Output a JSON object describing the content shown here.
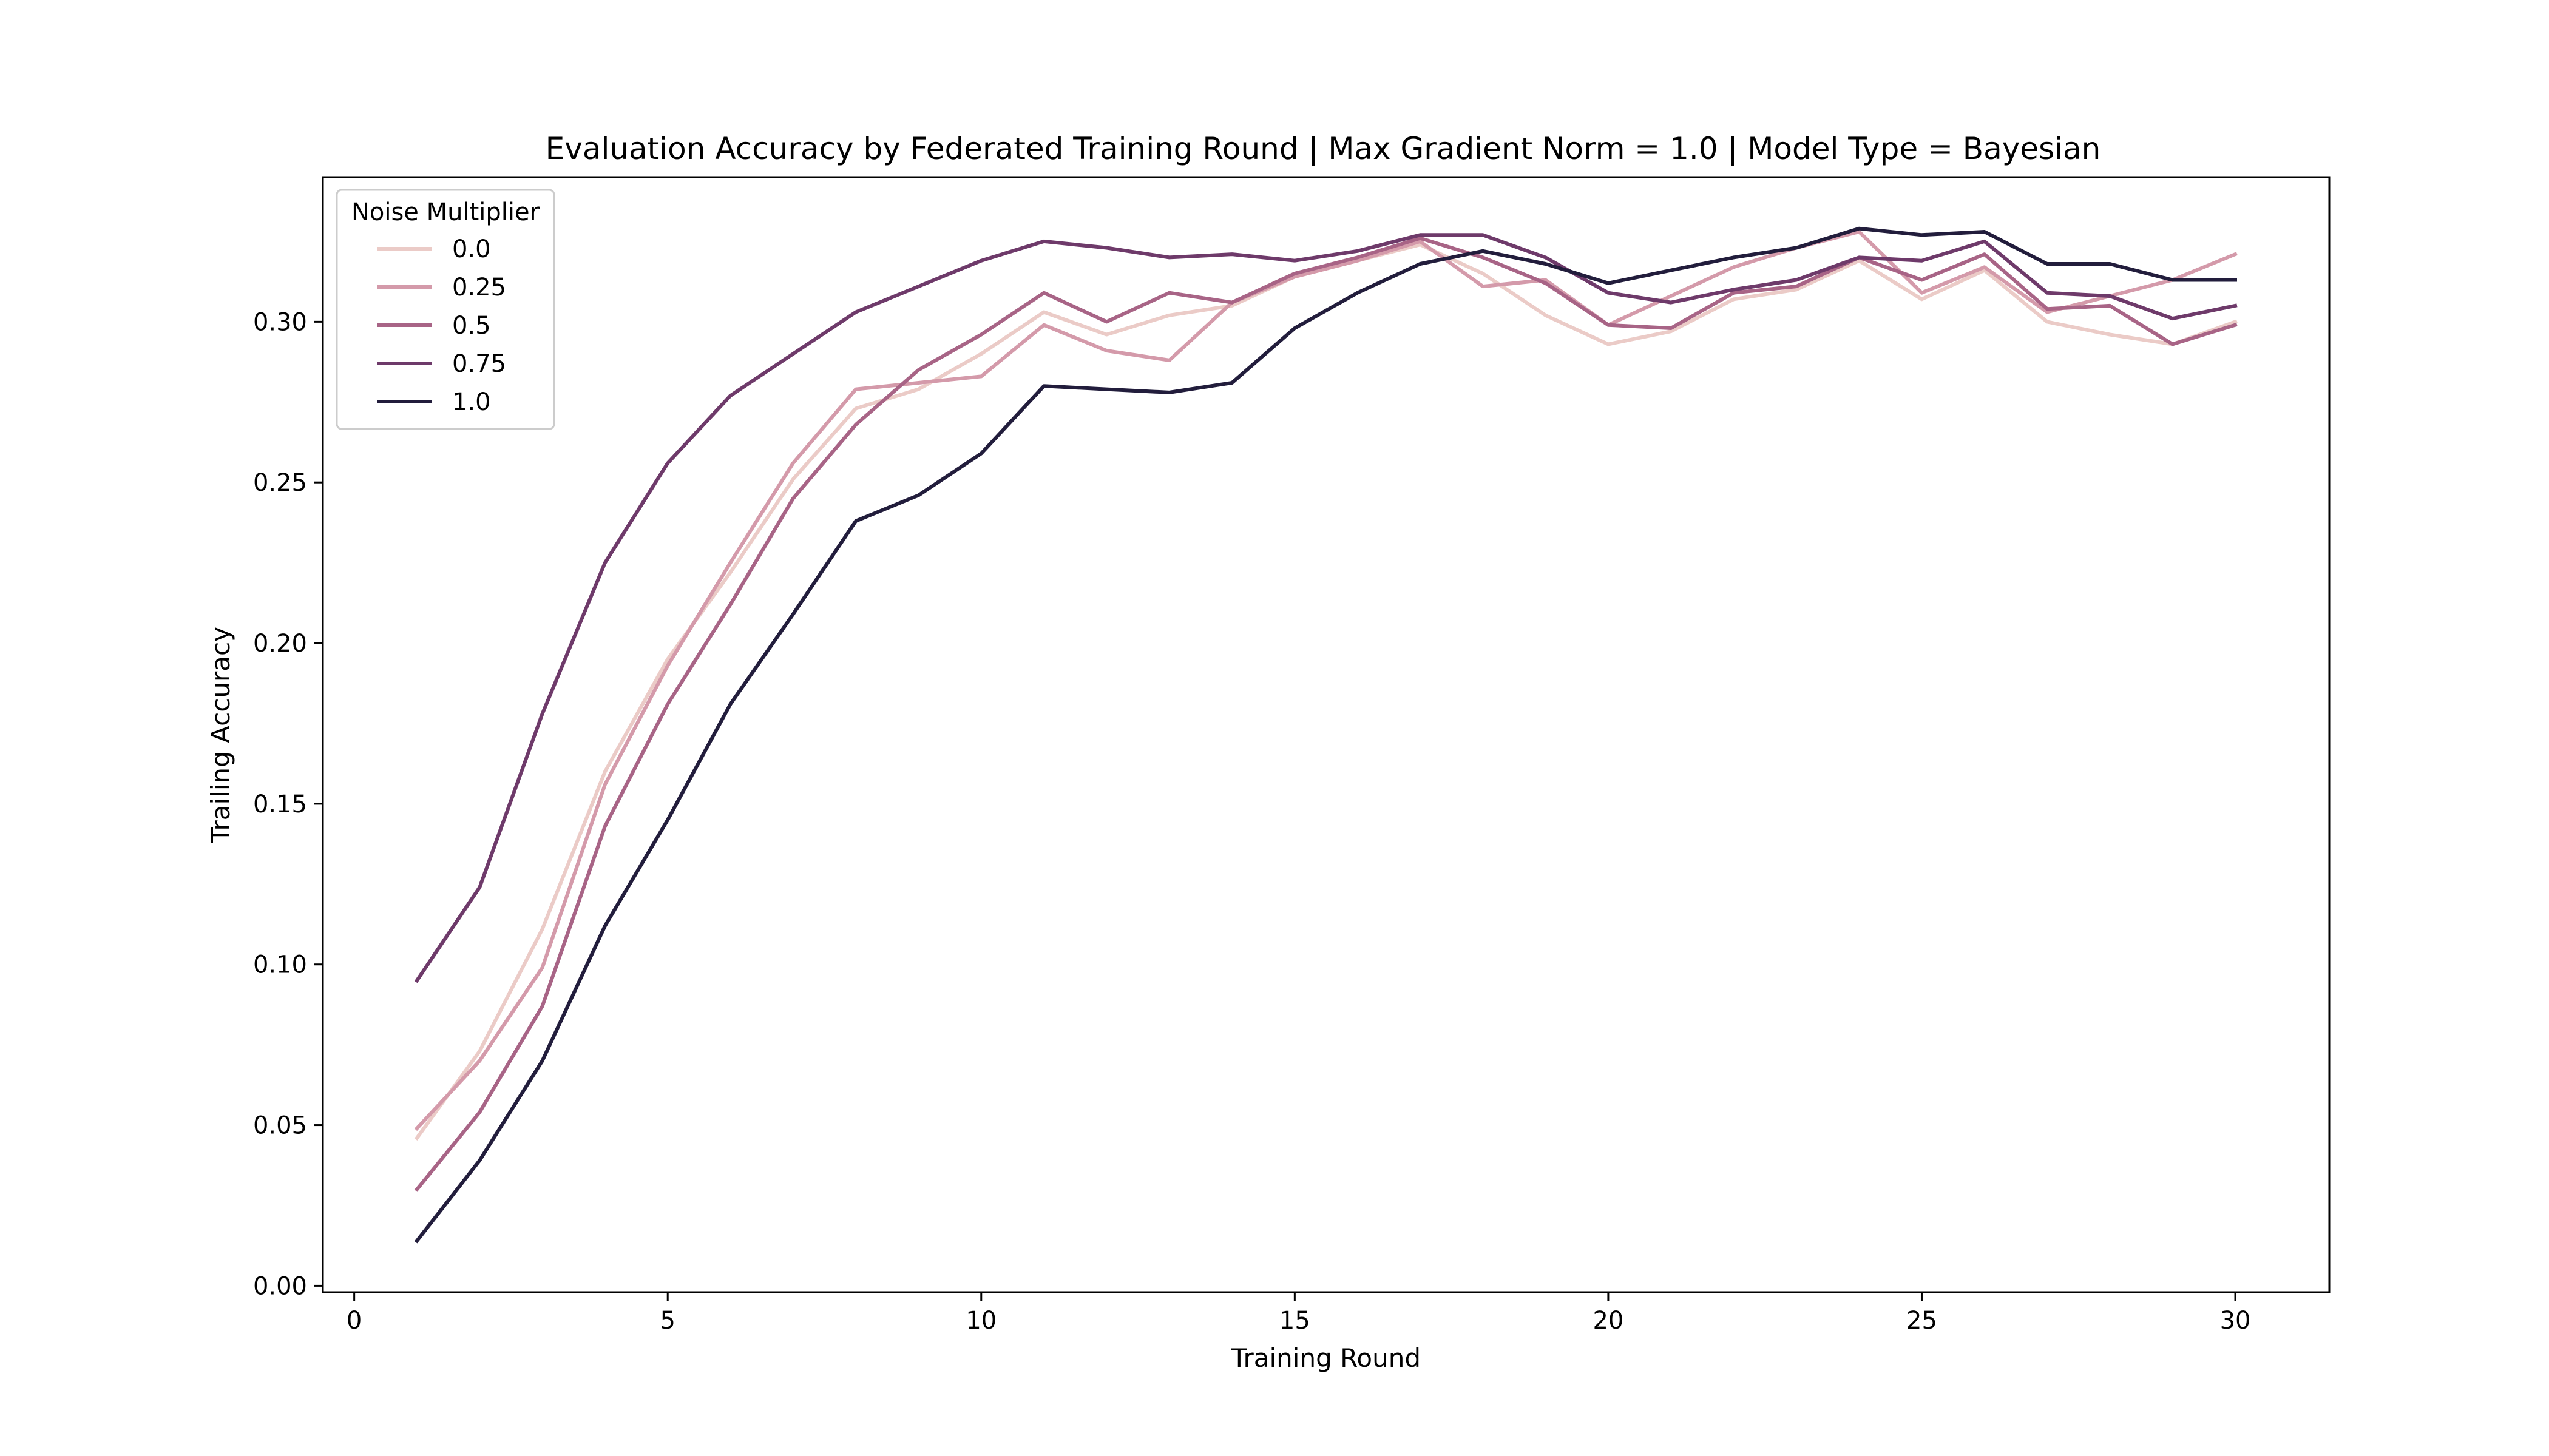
{
  "chart_data": {
    "type": "line",
    "title": "Evaluation Accuracy by Federated Training Round | Max Gradient Norm = 1.0 | Model Type = Bayesian",
    "xlabel": "Training Round",
    "ylabel": "Trailing Accuracy",
    "xlim": [
      -0.5,
      31.5
    ],
    "ylim": [
      -0.002,
      0.345
    ],
    "xticks": [
      0,
      5,
      10,
      15,
      20,
      25,
      30
    ],
    "xtick_labels": [
      "0",
      "5",
      "10",
      "15",
      "20",
      "25",
      "30"
    ],
    "yticks": [
      0.0,
      0.05,
      0.1,
      0.15,
      0.2,
      0.25,
      0.3
    ],
    "ytick_labels": [
      "0.00",
      "0.05",
      "0.10",
      "0.15",
      "0.20",
      "0.25",
      "0.30"
    ],
    "grid": false,
    "legend": {
      "title": "Noise Multiplier",
      "placement": "top-left"
    },
    "x": [
      1,
      2,
      3,
      4,
      5,
      6,
      7,
      8,
      9,
      10,
      11,
      12,
      13,
      14,
      15,
      16,
      17,
      18,
      19,
      20,
      21,
      22,
      23,
      24,
      25,
      26,
      27,
      28,
      29,
      30
    ],
    "series": [
      {
        "name": "0.0",
        "color": "#ebcbc7",
        "values": [
          0.046,
          0.073,
          0.111,
          0.16,
          0.195,
          0.222,
          0.251,
          0.273,
          0.279,
          0.29,
          0.303,
          0.296,
          0.302,
          0.305,
          0.314,
          0.319,
          0.324,
          0.315,
          0.302,
          0.293,
          0.297,
          0.307,
          0.31,
          0.319,
          0.307,
          0.316,
          0.3,
          0.296,
          0.293,
          0.3
        ]
      },
      {
        "name": "0.25",
        "color": "#d49aaa",
        "values": [
          0.049,
          0.07,
          0.099,
          0.156,
          0.193,
          0.225,
          0.256,
          0.279,
          0.281,
          0.283,
          0.299,
          0.291,
          0.288,
          0.306,
          0.314,
          0.319,
          0.325,
          0.311,
          0.313,
          0.299,
          0.308,
          0.317,
          0.323,
          0.328,
          0.309,
          0.317,
          0.303,
          0.308,
          0.313,
          0.321
        ]
      },
      {
        "name": "0.5",
        "color": "#a86486",
        "values": [
          0.03,
          0.054,
          0.087,
          0.143,
          0.181,
          0.212,
          0.245,
          0.268,
          0.285,
          0.296,
          0.309,
          0.3,
          0.309,
          0.306,
          0.315,
          0.32,
          0.326,
          0.32,
          0.312,
          0.299,
          0.298,
          0.309,
          0.311,
          0.32,
          0.313,
          0.321,
          0.304,
          0.305,
          0.293,
          0.299
        ]
      },
      {
        "name": "0.75",
        "color": "#6e3a6a",
        "values": [
          0.095,
          0.124,
          0.178,
          0.225,
          0.256,
          0.277,
          0.29,
          0.303,
          0.311,
          0.319,
          0.325,
          0.323,
          0.32,
          0.321,
          0.319,
          0.322,
          0.327,
          0.327,
          0.32,
          0.309,
          0.306,
          0.31,
          0.313,
          0.32,
          0.319,
          0.325,
          0.309,
          0.308,
          0.301,
          0.305
        ]
      },
      {
        "name": "1.0",
        "color": "#221d3c",
        "values": [
          0.014,
          0.039,
          0.07,
          0.112,
          0.145,
          0.181,
          0.209,
          0.238,
          0.246,
          0.259,
          0.28,
          0.279,
          0.278,
          0.281,
          0.298,
          0.309,
          0.318,
          0.322,
          0.318,
          0.312,
          0.316,
          0.32,
          0.323,
          0.329,
          0.327,
          0.328,
          0.318,
          0.318,
          0.313,
          0.313
        ]
      }
    ]
  }
}
